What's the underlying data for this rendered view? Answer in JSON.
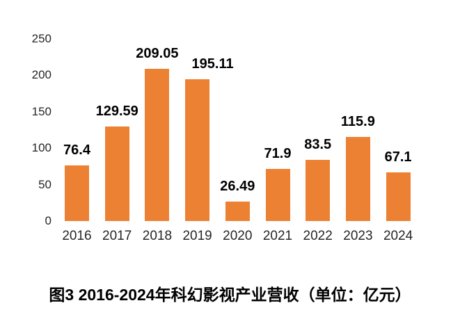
{
  "chart_data": {
    "type": "bar",
    "title": "图3 2016-2024年科幻影视产业营收（单位：亿元）",
    "categories": [
      "2016",
      "2017",
      "2018",
      "2019",
      "2020",
      "2021",
      "2022",
      "2023",
      "2024"
    ],
    "values": [
      76.4,
      129.59,
      209.05,
      195.11,
      26.49,
      71.9,
      83.5,
      115.9,
      67.1
    ],
    "xlabel": "",
    "ylabel": "",
    "ylim": [
      0,
      250
    ],
    "yticks": [
      0,
      50,
      100,
      150,
      200,
      250
    ],
    "bar_color": "#ED8133",
    "value_label_color": "#000000",
    "axis_label_color": "#262626",
    "background_color": "#FFFFFF",
    "grid": false,
    "legend_position": "none"
  }
}
